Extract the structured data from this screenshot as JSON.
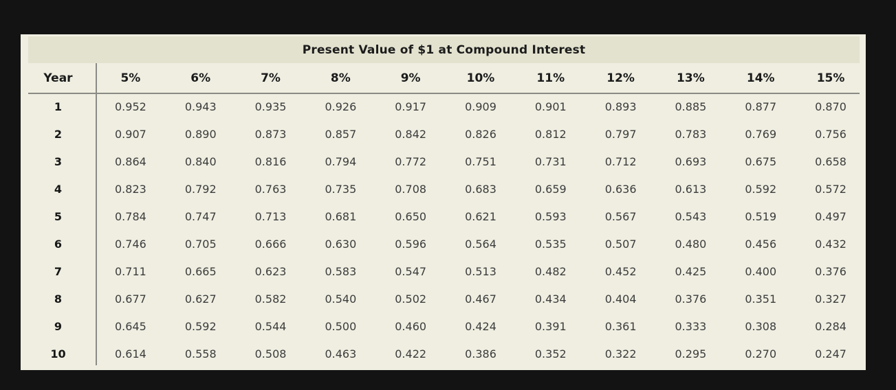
{
  "colors": {
    "page_background": "#131313",
    "table_background": "#efeee1",
    "title_band_background": "#e3e2cf",
    "rule_line": "#8b8b85",
    "header_text": "#1b1b1b",
    "value_text": "#3c3c3c"
  },
  "chart_data": {
    "type": "table",
    "title": "Present Value of $1 at Compound Interest",
    "row_label": "Year",
    "columns": [
      "5%",
      "6%",
      "7%",
      "8%",
      "9%",
      "10%",
      "11%",
      "12%",
      "13%",
      "14%",
      "15%"
    ],
    "rows": [
      {
        "year": "1",
        "values": [
          "0.952",
          "0.943",
          "0.935",
          "0.926",
          "0.917",
          "0.909",
          "0.901",
          "0.893",
          "0.885",
          "0.877",
          "0.870"
        ]
      },
      {
        "year": "2",
        "values": [
          "0.907",
          "0.890",
          "0.873",
          "0.857",
          "0.842",
          "0.826",
          "0.812",
          "0.797",
          "0.783",
          "0.769",
          "0.756"
        ]
      },
      {
        "year": "3",
        "values": [
          "0.864",
          "0.840",
          "0.816",
          "0.794",
          "0.772",
          "0.751",
          "0.731",
          "0.712",
          "0.693",
          "0.675",
          "0.658"
        ]
      },
      {
        "year": "4",
        "values": [
          "0.823",
          "0.792",
          "0.763",
          "0.735",
          "0.708",
          "0.683",
          "0.659",
          "0.636",
          "0.613",
          "0.592",
          "0.572"
        ]
      },
      {
        "year": "5",
        "values": [
          "0.784",
          "0.747",
          "0.713",
          "0.681",
          "0.650",
          "0.621",
          "0.593",
          "0.567",
          "0.543",
          "0.519",
          "0.497"
        ]
      },
      {
        "year": "6",
        "values": [
          "0.746",
          "0.705",
          "0.666",
          "0.630",
          "0.596",
          "0.564",
          "0.535",
          "0.507",
          "0.480",
          "0.456",
          "0.432"
        ]
      },
      {
        "year": "7",
        "values": [
          "0.711",
          "0.665",
          "0.623",
          "0.583",
          "0.547",
          "0.513",
          "0.482",
          "0.452",
          "0.425",
          "0.400",
          "0.376"
        ]
      },
      {
        "year": "8",
        "values": [
          "0.677",
          "0.627",
          "0.582",
          "0.540",
          "0.502",
          "0.467",
          "0.434",
          "0.404",
          "0.376",
          "0.351",
          "0.327"
        ]
      },
      {
        "year": "9",
        "values": [
          "0.645",
          "0.592",
          "0.544",
          "0.500",
          "0.460",
          "0.424",
          "0.391",
          "0.361",
          "0.333",
          "0.308",
          "0.284"
        ]
      },
      {
        "year": "10",
        "values": [
          "0.614",
          "0.558",
          "0.508",
          "0.463",
          "0.422",
          "0.386",
          "0.352",
          "0.322",
          "0.295",
          "0.270",
          "0.247"
        ]
      }
    ]
  }
}
